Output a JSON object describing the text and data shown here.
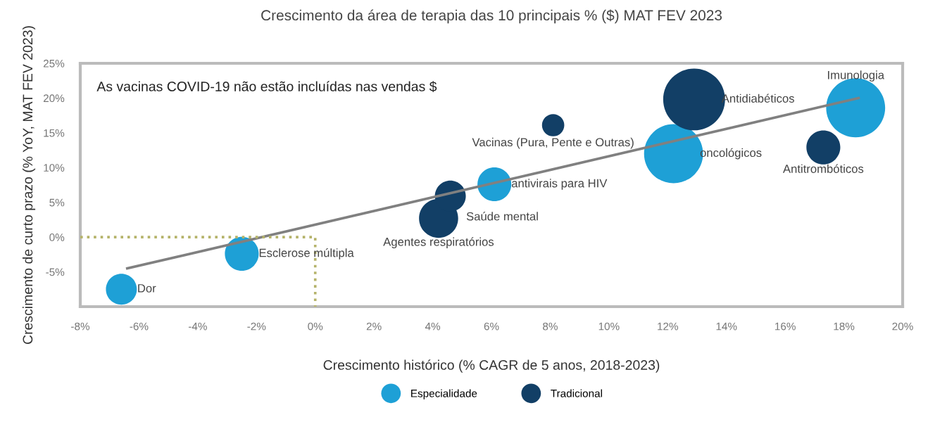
{
  "chart_data": {
    "type": "bubble",
    "title": "Crescimento da área de terapia das 10 principais % ($) MAT FEV 2023",
    "xlabel": "Crescimento histórico (% CAGR de 5 anos, 2018-2023)",
    "ylabel": "Crescimento de curto prazo (% YoY, MAT FEV 2023)",
    "xlim": [
      -8,
      20
    ],
    "ylim": [
      -10,
      25
    ],
    "xticks": [
      {
        "value": -8,
        "label": "-8%"
      },
      {
        "value": -6,
        "label": "-6%"
      },
      {
        "value": -4,
        "label": "-4%"
      },
      {
        "value": -2,
        "label": "-2%"
      },
      {
        "value": 0,
        "label": "0%"
      },
      {
        "value": 2,
        "label": "2%"
      },
      {
        "value": 4,
        "label": "4%"
      },
      {
        "value": 6,
        "label": "6%"
      },
      {
        "value": 8,
        "label": "8%"
      },
      {
        "value": 10,
        "label": "10%"
      },
      {
        "value": 12,
        "label": "12%"
      },
      {
        "value": 14,
        "label": "14%"
      },
      {
        "value": 16,
        "label": "16%"
      },
      {
        "value": 18,
        "label": "18%"
      },
      {
        "value": 20,
        "label": "20%"
      }
    ],
    "yticks": [
      {
        "value": -5,
        "label": "-5%"
      },
      {
        "value": 0,
        "label": "0%"
      },
      {
        "value": 5,
        "label": "5%"
      },
      {
        "value": 10,
        "label": "10%"
      },
      {
        "value": 15,
        "label": "15%"
      },
      {
        "value": 20,
        "label": "20%"
      },
      {
        "value": 25,
        "label": "25%"
      }
    ],
    "grid": false,
    "legend": "bottom",
    "series": [
      {
        "name": "Especialidade",
        "color": "#1ea0d6",
        "x": [
          -6.6,
          -2.5,
          6.1,
          12.2,
          18.4
        ],
        "values": [
          -7.5,
          -2.4,
          7.6,
          12.0,
          18.6
        ],
        "sizes": [
          0.25,
          0.3,
          0.3,
          0.91,
          0.91
        ]
      },
      {
        "name": "Tradicional",
        "color": "#123f66",
        "x": [
          4.2,
          4.6,
          8.1,
          12.9,
          17.3
        ],
        "values": [
          2.7,
          5.9,
          16.1,
          19.8,
          12.9
        ],
        "sizes": [
          0.4,
          0.25,
          0.13,
          1,
          0.3
        ]
      },
      {
        "type": "line",
        "color": "#808080",
        "line_style": "solid",
        "x": [
          -6.4,
          18.5
        ],
        "values": [
          -4.5,
          20
        ]
      },
      {
        "type": "line",
        "color": "#b5b36a",
        "line_style": "dotted",
        "x": [
          -8,
          0,
          0
        ],
        "values": [
          0,
          0,
          -10
        ]
      }
    ],
    "annotations": [
      "As vacinas COVID-19 não estão incluídas nas vendas $",
      {
        "text": "Dor",
        "x": -6.6,
        "y": -7.5
      },
      {
        "text": "Esclerose múltipla",
        "x": -2.5,
        "y": -2.4
      },
      {
        "text": "Saúde mental",
        "x": 4.6,
        "y": 5.9
      },
      {
        "text": "Agentes respiratórios",
        "x": 4.2,
        "y": 2.7
      },
      {
        "text": "antivirais para HIV",
        "x": 6.1,
        "y": 7.6
      },
      {
        "text": "Vacinas (Pura, Pente e Outras)",
        "x": 8.1,
        "y": 16.1
      },
      {
        "text": "Antidiabéticos",
        "x": 12.9,
        "y": 19.8
      },
      {
        "text": "oncológicos",
        "x": 12.2,
        "y": 12.0
      },
      {
        "text": "Antitrombóticos",
        "x": 17.3,
        "y": 12.9
      },
      {
        "text": "Imunologia",
        "x": 18.4,
        "y": 18.6
      }
    ]
  }
}
